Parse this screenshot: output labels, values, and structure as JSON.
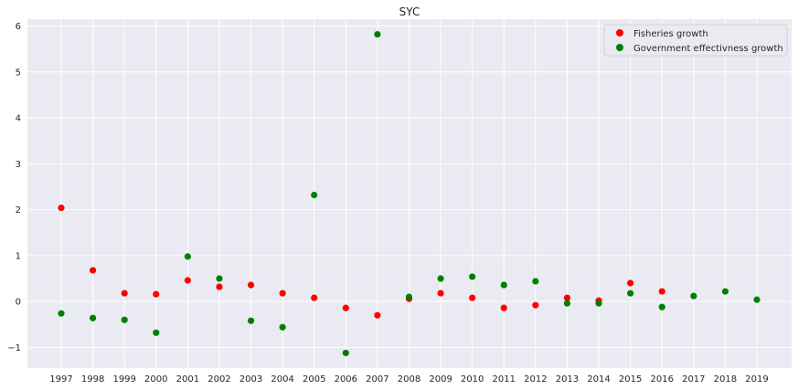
{
  "chart_data": {
    "type": "scatter",
    "title": "SYC",
    "xlabel": "",
    "ylabel": "",
    "x": [
      "1997",
      "1998",
      "1999",
      "2000",
      "2001",
      "2002",
      "2003",
      "2004",
      "2005",
      "2006",
      "2007",
      "2008",
      "2009",
      "2010",
      "2011",
      "2012",
      "2013",
      "2014",
      "2015",
      "2016",
      "2017",
      "2018",
      "2019"
    ],
    "ylim": [
      -1.45,
      6.15
    ],
    "yticks": [
      -1,
      0,
      1,
      2,
      3,
      4,
      5,
      6
    ],
    "ytick_labels": [
      "−1",
      "0",
      "1",
      "2",
      "3",
      "4",
      "5",
      "6"
    ],
    "grid": true,
    "legend_position": "top-right",
    "series": [
      {
        "name": "Fisheries growth",
        "color": "#ff0000",
        "x": [
          "1997",
          "1998",
          "1999",
          "2000",
          "2001",
          "2002",
          "2003",
          "2004",
          "2005",
          "2006",
          "2007",
          "2008",
          "2009",
          "2010",
          "2011",
          "2012",
          "2013",
          "2014",
          "2015",
          "2016"
        ],
        "values": [
          2.04,
          0.68,
          0.18,
          0.16,
          0.46,
          0.32,
          0.36,
          0.18,
          0.08,
          -0.14,
          -0.3,
          0.06,
          0.18,
          0.08,
          -0.14,
          -0.08,
          0.08,
          0.02,
          0.4,
          0.22
        ]
      },
      {
        "name": "Government effectivness growth",
        "color": "#008000",
        "x": [
          "1997",
          "1998",
          "1999",
          "2000",
          "2001",
          "2002",
          "2003",
          "2004",
          "2005",
          "2006",
          "2007",
          "2008",
          "2009",
          "2010",
          "2011",
          "2012",
          "2013",
          "2014",
          "2015",
          "2016",
          "2017",
          "2018",
          "2019"
        ],
        "values": [
          -0.26,
          -0.36,
          -0.4,
          -0.68,
          0.98,
          0.5,
          -0.42,
          -0.56,
          2.32,
          -1.12,
          5.82,
          0.1,
          0.5,
          0.54,
          0.36,
          0.44,
          -0.04,
          -0.04,
          0.18,
          -0.12,
          0.12,
          0.22,
          0.04
        ]
      }
    ]
  }
}
